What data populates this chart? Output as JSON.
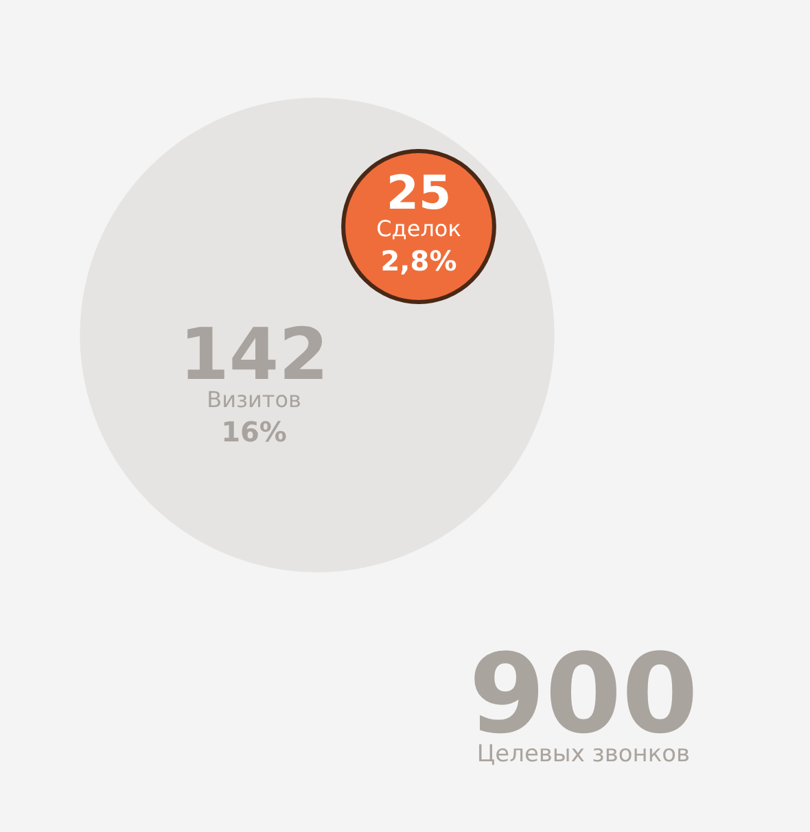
{
  "chart_data": {
    "type": "other",
    "categories": [
      "Целевых звонков",
      "Визитов",
      "Сделок"
    ],
    "values": [
      900,
      142,
      25
    ],
    "data_labels": true,
    "colors": [
      "#f4f4f4",
      "#e6e4e2",
      "#ef6d3a"
    ],
    "annotations": [
      "16%",
      "2,8%"
    ]
  }
}
